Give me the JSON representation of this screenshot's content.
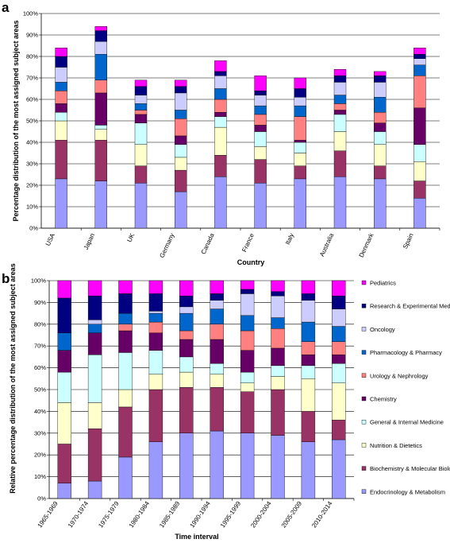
{
  "series_colors": [
    "#9999ff",
    "#993366",
    "#ffffcc",
    "#ccffff",
    "#660066",
    "#ff8080",
    "#0066cc",
    "#ccccff",
    "#000080",
    "#ff00ff"
  ],
  "chart_data": [
    {
      "panel_label": "a",
      "type": "bar",
      "stacked": true,
      "categories": [
        "USA",
        "Japan",
        "UK",
        "Germany",
        "Canada",
        "France",
        "Italy",
        "Australia",
        "Denmark",
        "Spain"
      ],
      "xlabel": "Country",
      "ylabel": "Percentage distribution of the most assigned subject areas",
      "ylim": [
        0,
        100
      ],
      "yticks": [
        "0%",
        "10%",
        "20%",
        "30%",
        "40%",
        "50%",
        "60%",
        "70%",
        "80%",
        "90%",
        "100%"
      ],
      "legend": "none",
      "series": [
        {
          "values": [
            23,
            22,
            21,
            17,
            24,
            21,
            23,
            24,
            23,
            14
          ]
        },
        {
          "values": [
            18,
            19,
            8,
            10,
            10,
            11,
            6,
            12,
            6,
            8
          ]
        },
        {
          "values": [
            9,
            5,
            10,
            6,
            13,
            6,
            6,
            9,
            10,
            9
          ]
        },
        {
          "values": [
            4,
            2,
            10,
            6,
            5,
            7,
            5,
            8,
            6,
            8
          ]
        },
        {
          "values": [
            4,
            15,
            4,
            4,
            2,
            3,
            1,
            2,
            4,
            17
          ]
        },
        {
          "values": [
            6,
            6,
            2,
            8,
            6,
            5,
            11,
            3,
            5,
            15
          ]
        },
        {
          "values": [
            4,
            12,
            3,
            4,
            5,
            4,
            5,
            4,
            7,
            5
          ]
        },
        {
          "values": [
            7,
            6,
            4,
            8,
            6,
            5,
            4,
            6,
            7,
            3
          ]
        },
        {
          "values": [
            5,
            5,
            4,
            3,
            2,
            2,
            4,
            3,
            3,
            2
          ]
        },
        {
          "values": [
            4,
            2,
            3,
            3,
            5,
            7,
            5,
            3,
            2,
            3
          ]
        }
      ]
    },
    {
      "panel_label": "b",
      "type": "bar",
      "stacked": true,
      "categories": [
        "1965-1969",
        "1970-1974",
        "1975-1979",
        "1980-1984",
        "1985-1989",
        "1990-1994",
        "1995-1999",
        "2000-2004",
        "2005-2009",
        "2010-2014"
      ],
      "xlabel": "Time interval",
      "ylabel": "Relative percentage distribution of the most assigned subject areas",
      "ylim": [
        0,
        100
      ],
      "yticks": [
        "0%",
        "10%",
        "20%",
        "30%",
        "40%",
        "50%",
        "60%",
        "70%",
        "80%",
        "90%",
        "100%"
      ],
      "legend": "right",
      "series": [
        {
          "name": "Endocrinology & Metabolism",
          "values": [
            7,
            8,
            19,
            26,
            30,
            31,
            30,
            29,
            26,
            27
          ]
        },
        {
          "name": "Biochemistry & Molecular Biology",
          "values": [
            18,
            24,
            23,
            24,
            21,
            20,
            19,
            21,
            14,
            9
          ]
        },
        {
          "name": "Nutrition & Dietetics",
          "values": [
            19,
            12,
            8,
            7,
            7,
            6,
            4,
            6,
            15,
            17
          ]
        },
        {
          "name": "General & Internal Medicine",
          "values": [
            14,
            22,
            17,
            11,
            7,
            5,
            5,
            5,
            6,
            9
          ]
        },
        {
          "name": "Chemistry",
          "values": [
            10,
            10,
            10,
            8,
            8,
            11,
            10,
            8,
            5,
            4
          ]
        },
        {
          "name": "Urology & Nephrology",
          "values": [
            0,
            0,
            3,
            5,
            4,
            7,
            9,
            9,
            6,
            6
          ]
        },
        {
          "name": "Pharmacology & Pharmacy",
          "values": [
            8,
            4,
            5,
            4,
            8,
            7,
            7,
            5,
            9,
            7
          ]
        },
        {
          "name": "Oncology",
          "values": [
            0,
            2,
            0,
            1,
            3,
            4,
            10,
            10,
            10,
            8
          ]
        },
        {
          "name": "Research & Experimental Medicine",
          "values": [
            16,
            11,
            9,
            8,
            5,
            3,
            2,
            2,
            3,
            6
          ]
        },
        {
          "name": "Pediatrics",
          "values": [
            8,
            7,
            6,
            6,
            7,
            6,
            4,
            5,
            6,
            7
          ]
        }
      ]
    }
  ]
}
